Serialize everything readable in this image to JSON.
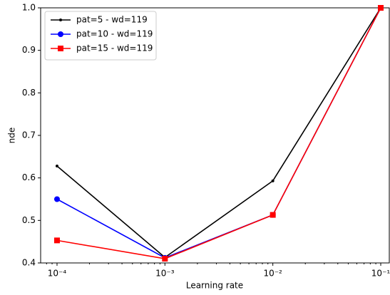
{
  "chart_data": {
    "type": "line",
    "x_label": "Learning rate",
    "y_label": "nde",
    "x": [
      0.0001,
      0.001,
      0.01,
      0.1
    ],
    "series": [
      {
        "name": "pat=5 - wd=119",
        "color": "#000000",
        "marker": "point",
        "values": [
          0.628,
          0.413,
          0.593,
          1.0
        ]
      },
      {
        "name": "pat=10 - wd=119",
        "color": "#0000ff",
        "marker": "circle",
        "values": [
          0.55,
          0.412,
          0.513,
          1.0
        ]
      },
      {
        "name": "pat=15 - wd=119",
        "color": "#ff0000",
        "marker": "square",
        "values": [
          0.453,
          0.41,
          0.513,
          1.0
        ]
      }
    ],
    "x_scale": "log",
    "xlim": [
      7.05e-05,
      0.12
    ],
    "xticks": [
      {
        "value": 0.0001,
        "label": "10⁻⁴"
      },
      {
        "value": 0.001,
        "label": "10⁻³"
      },
      {
        "value": 0.01,
        "label": "10⁻²"
      },
      {
        "value": 0.1,
        "label": "10⁻¹"
      }
    ],
    "ylim": [
      0.4,
      1.0
    ],
    "yticks": [
      0.4,
      0.5,
      0.6,
      0.7,
      0.8,
      0.9,
      {
        "value": 1.0,
        "label": "1.0"
      }
    ],
    "legend": "upper left"
  }
}
